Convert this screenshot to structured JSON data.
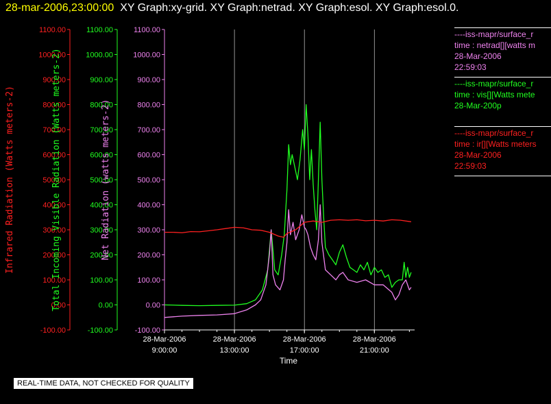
{
  "header": {
    "date_time": "28-mar-2006,23:00:00",
    "graphs": "XY Graph:xy-grid.  XY Graph:netrad.  XY Graph:esol.  XY Graph:esol.0."
  },
  "colors": {
    "infrared": "#ff2020",
    "visible": "#20ff20",
    "net": "#ee82ee",
    "axis": "#ffffff",
    "background": "#000000"
  },
  "legend": [
    {
      "series": "net",
      "lines": [
        "----iss-mapr/surface_r",
        "time : netrad[][watts m",
        "28-Mar-2006",
        "22:59:03"
      ]
    },
    {
      "series": "visible",
      "lines": [
        "----iss-mapr/surface_r",
        "time : vis[][Watts mete",
        "28-Mar-200p"
      ]
    },
    {
      "series": "infrared",
      "lines": [
        "----iss-mapr/surface_r",
        "time : ir[][Watts meters",
        "28-Mar-2006",
        "22:59:03"
      ]
    }
  ],
  "footer": {
    "quality_note": "REAL-TIME DATA, NOT CHECKED FOR QUALITY"
  },
  "chart_data": {
    "type": "line",
    "xlabel": "Time",
    "x_unit": "hours since 28-Mar-2006 00:00",
    "xlim": [
      9,
      23.3
    ],
    "x_ticks": [
      {
        "x": 9,
        "date": "28-Mar-2006",
        "time": "9:00:00"
      },
      {
        "x": 13,
        "date": "28-Mar-2006",
        "time": "13:00:00"
      },
      {
        "x": 17,
        "date": "28-Mar-2006",
        "time": "17:00:00"
      },
      {
        "x": 21,
        "date": "28-Mar-2006",
        "time": "21:00:00"
      }
    ],
    "grid": "vertical",
    "legend_position": "right",
    "axes": [
      {
        "id": "infrared",
        "label": "Infrared Radiation (Watts meters-2)",
        "color": "#ff2020",
        "ylim": [
          -100,
          1100
        ],
        "tick_labels": [
          "-100.00",
          "0.00",
          "100.00",
          "200.00",
          "300.00",
          "400.00",
          "500.00",
          "600.00",
          "700.00",
          "800.00",
          "900.00",
          "1000.00",
          "1100.00"
        ]
      },
      {
        "id": "visible",
        "label": "Total Incoming Visible Radiation (Watts meters-2)",
        "color": "#20ff20",
        "ylim": [
          -100,
          1100
        ],
        "tick_labels": [
          "-100.00",
          "0.00",
          "100.00",
          "200.00",
          "300.00",
          "400.00",
          "500.00",
          "600.00",
          "700.00",
          "800.00",
          "900.00",
          "1000.00",
          "1100.00"
        ]
      },
      {
        "id": "net",
        "label": "Net Radiation (watts meters-2)",
        "color": "#ee82ee",
        "ylim": [
          -100,
          1100
        ],
        "tick_labels": [
          "-100.00",
          "0.00",
          "100.00",
          "200.00",
          "300.00",
          "400.00",
          "500.00",
          "600.00",
          "700.00",
          "800.00",
          "900.00",
          "1000.00",
          "1100.00"
        ]
      }
    ],
    "series": [
      {
        "id": "visible",
        "color": "#20ff20",
        "points": [
          [
            9,
            0
          ],
          [
            10,
            -2
          ],
          [
            11,
            -3
          ],
          [
            12,
            -2
          ],
          [
            13,
            -1
          ],
          [
            13.7,
            5
          ],
          [
            14.2,
            20
          ],
          [
            14.6,
            60
          ],
          [
            14.9,
            140
          ],
          [
            15.1,
            300
          ],
          [
            15.2,
            220
          ],
          [
            15.3,
            140
          ],
          [
            15.5,
            120
          ],
          [
            15.7,
            200
          ],
          [
            15.85,
            280
          ],
          [
            16.0,
            460
          ],
          [
            16.1,
            640
          ],
          [
            16.2,
            560
          ],
          [
            16.3,
            600
          ],
          [
            16.45,
            550
          ],
          [
            16.6,
            500
          ],
          [
            16.75,
            580
          ],
          [
            16.9,
            700
          ],
          [
            17.0,
            620
          ],
          [
            17.1,
            800
          ],
          [
            17.2,
            680
          ],
          [
            17.3,
            500
          ],
          [
            17.4,
            620
          ],
          [
            17.5,
            480
          ],
          [
            17.6,
            380
          ],
          [
            17.7,
            300
          ],
          [
            17.8,
            500
          ],
          [
            17.9,
            730
          ],
          [
            18.0,
            500
          ],
          [
            18.1,
            350
          ],
          [
            18.2,
            230
          ],
          [
            18.4,
            200
          ],
          [
            18.6,
            180
          ],
          [
            18.8,
            160
          ],
          [
            19.0,
            210
          ],
          [
            19.2,
            240
          ],
          [
            19.4,
            190
          ],
          [
            19.6,
            150
          ],
          [
            19.8,
            140
          ],
          [
            20.0,
            130
          ],
          [
            20.2,
            160
          ],
          [
            20.4,
            140
          ],
          [
            20.6,
            170
          ],
          [
            20.8,
            120
          ],
          [
            21.0,
            150
          ],
          [
            21.2,
            130
          ],
          [
            21.4,
            140
          ],
          [
            21.6,
            110
          ],
          [
            21.8,
            120
          ],
          [
            22.0,
            70
          ],
          [
            22.2,
            90
          ],
          [
            22.4,
            100
          ],
          [
            22.6,
            100
          ],
          [
            22.7,
            170
          ],
          [
            22.8,
            110
          ],
          [
            22.9,
            150
          ],
          [
            23.0,
            110
          ],
          [
            23.1,
            130
          ]
        ]
      },
      {
        "id": "net",
        "color": "#ee82ee",
        "points": [
          [
            9,
            -50
          ],
          [
            10,
            -45
          ],
          [
            11,
            -42
          ],
          [
            12,
            -40
          ],
          [
            13,
            -35
          ],
          [
            13.7,
            -20
          ],
          [
            14.2,
            0
          ],
          [
            14.5,
            20
          ],
          [
            14.8,
            80
          ],
          [
            15.0,
            200
          ],
          [
            15.1,
            300
          ],
          [
            15.2,
            120
          ],
          [
            15.35,
            80
          ],
          [
            15.6,
            60
          ],
          [
            15.8,
            100
          ],
          [
            15.9,
            180
          ],
          [
            16.0,
            250
          ],
          [
            16.1,
            380
          ],
          [
            16.2,
            280
          ],
          [
            16.35,
            330
          ],
          [
            16.5,
            260
          ],
          [
            16.7,
            300
          ],
          [
            16.85,
            360
          ],
          [
            17.0,
            310
          ],
          [
            17.1,
            300
          ],
          [
            17.2,
            280
          ],
          [
            17.35,
            230
          ],
          [
            17.5,
            200
          ],
          [
            17.65,
            180
          ],
          [
            17.8,
            260
          ],
          [
            17.9,
            400
          ],
          [
            18.0,
            250
          ],
          [
            18.2,
            140
          ],
          [
            18.5,
            120
          ],
          [
            18.8,
            100
          ],
          [
            19.0,
            120
          ],
          [
            19.2,
            130
          ],
          [
            19.5,
            100
          ],
          [
            20.0,
            90
          ],
          [
            20.5,
            100
          ],
          [
            21.0,
            80
          ],
          [
            21.5,
            80
          ],
          [
            22.0,
            50
          ],
          [
            22.2,
            20
          ],
          [
            22.4,
            40
          ],
          [
            22.6,
            80
          ],
          [
            22.8,
            100
          ],
          [
            23.0,
            60
          ],
          [
            23.1,
            70
          ]
        ]
      },
      {
        "id": "infrared",
        "color": "#ff2020",
        "points": [
          [
            9,
            290
          ],
          [
            9.5,
            290
          ],
          [
            10,
            288
          ],
          [
            10.5,
            293
          ],
          [
            11,
            292
          ],
          [
            11.5,
            296
          ],
          [
            12,
            300
          ],
          [
            12.5,
            305
          ],
          [
            13,
            310
          ],
          [
            13.5,
            308
          ],
          [
            14,
            300
          ],
          [
            14.5,
            298
          ],
          [
            15,
            290
          ],
          [
            15.5,
            275
          ],
          [
            15.8,
            270
          ],
          [
            16,
            285
          ],
          [
            16.5,
            300
          ],
          [
            17,
            330
          ],
          [
            17.5,
            335
          ],
          [
            18,
            330
          ],
          [
            18.5,
            338
          ],
          [
            19,
            340
          ],
          [
            19.5,
            338
          ],
          [
            20,
            340
          ],
          [
            20.5,
            336
          ],
          [
            21,
            338
          ],
          [
            21.5,
            335
          ],
          [
            22,
            340
          ],
          [
            22.5,
            338
          ],
          [
            23.1,
            332
          ]
        ]
      }
    ]
  }
}
